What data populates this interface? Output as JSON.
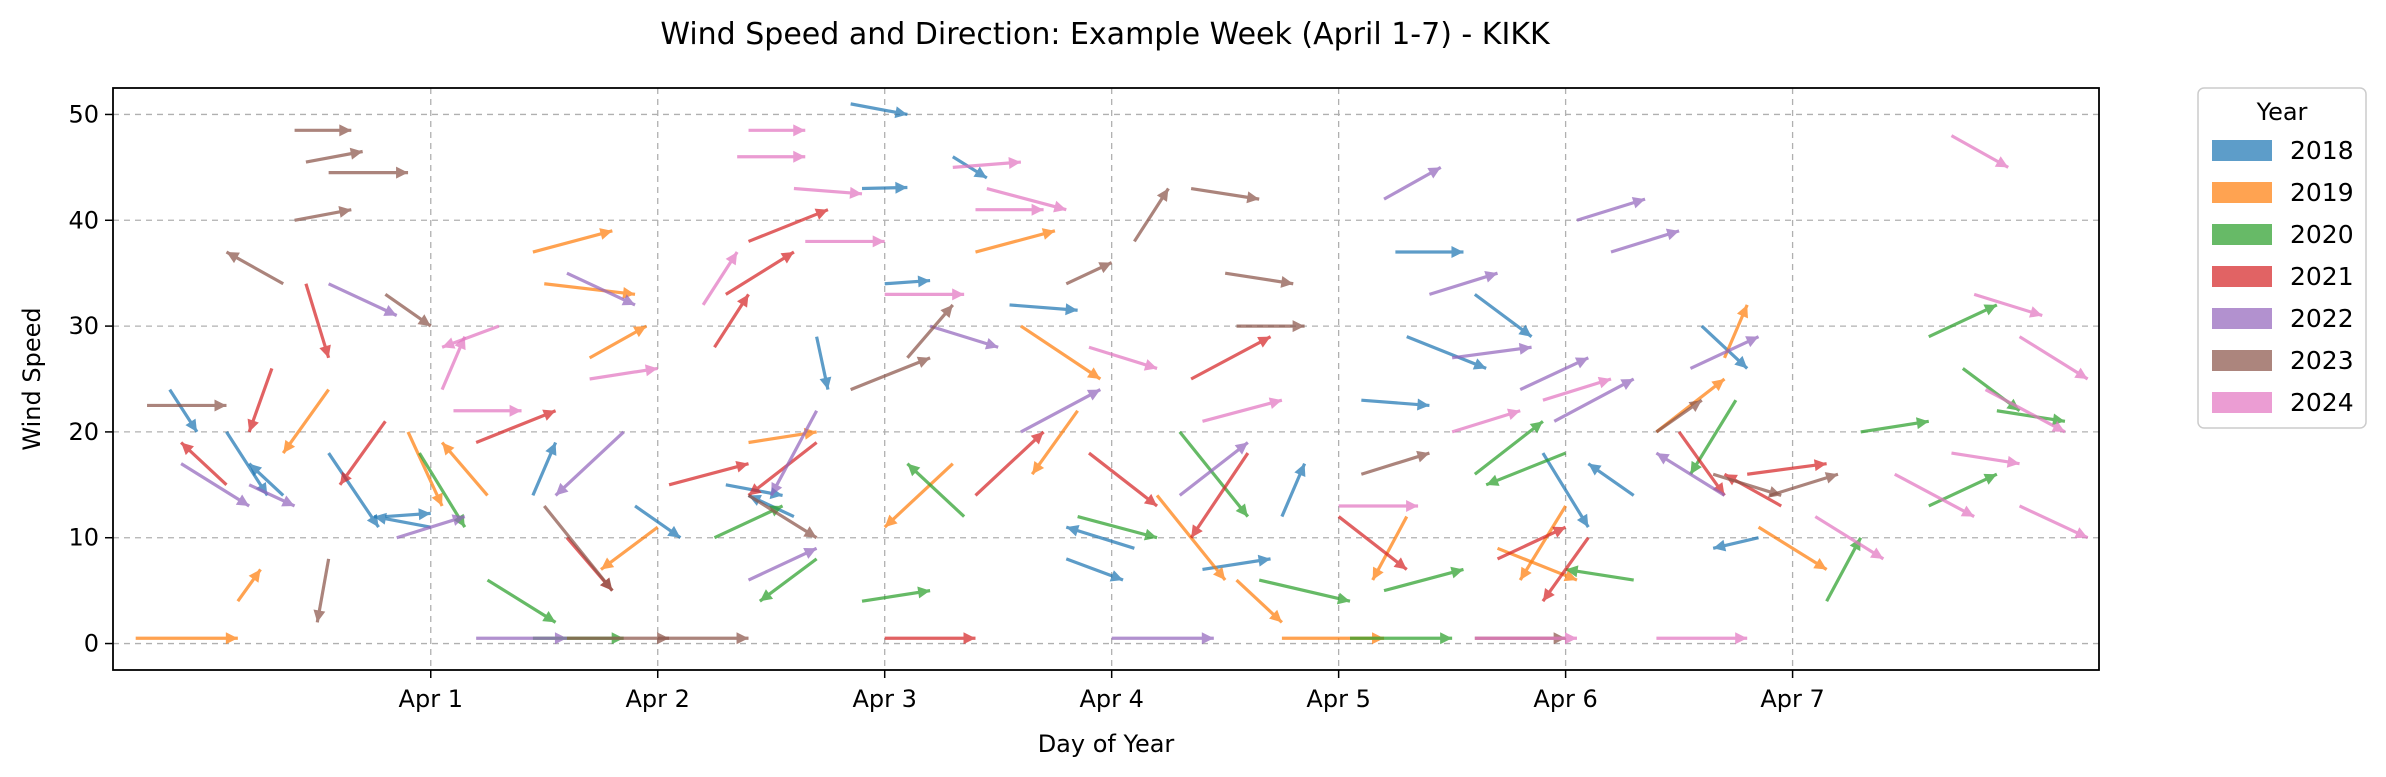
{
  "chart_data": {
    "type": "quiver",
    "title": "Wind Speed and Direction: Example Week (April 1-7) - KIKK",
    "xlabel": "Day of Year",
    "ylabel": "Wind Speed",
    "x_ticks": [
      "Apr 1",
      "Apr 2",
      "Apr 3",
      "Apr 4",
      "Apr 5",
      "Apr 6",
      "Apr 7"
    ],
    "x_tick_values": [
      91,
      92,
      93,
      94,
      95,
      96,
      97
    ],
    "xlim": [
      89.6,
      98.35
    ],
    "y_ticks": [
      0,
      10,
      20,
      30,
      40,
      50
    ],
    "ylim": [
      -2.5,
      52.5
    ],
    "grid": true,
    "legend": {
      "title": "Year",
      "placement": "outside-right-top"
    },
    "series": [
      {
        "name": "2018",
        "color": "#1f77b4"
      },
      {
        "name": "2019",
        "color": "#ff7f0e"
      },
      {
        "name": "2020",
        "color": "#2ca02c"
      },
      {
        "name": "2021",
        "color": "#d62728"
      },
      {
        "name": "2022",
        "color": "#9467bd"
      },
      {
        "name": "2023",
        "color": "#8c564b"
      },
      {
        "name": "2024",
        "color": "#e377c2"
      }
    ],
    "arrows": [
      {
        "s": "2018",
        "x": 89.85,
        "y": 24,
        "u": 0.12,
        "v": -4
      },
      {
        "s": "2018",
        "x": 90.1,
        "y": 20,
        "u": 0.18,
        "v": -6
      },
      {
        "s": "2018",
        "x": 90.35,
        "y": 14,
        "u": -0.15,
        "v": 3
      },
      {
        "s": "2018",
        "x": 90.55,
        "y": 18,
        "u": 0.22,
        "v": -7
      },
      {
        "s": "2018",
        "x": 90.8,
        "y": 12,
        "u": 0.2,
        "v": 0.3
      },
      {
        "s": "2018",
        "x": 91.0,
        "y": 11,
        "u": -0.25,
        "v": 1
      },
      {
        "s": "2018",
        "x": 91.45,
        "y": 14,
        "u": 0.1,
        "v": 5
      },
      {
        "s": "2018",
        "x": 91.9,
        "y": 13,
        "u": 0.2,
        "v": -3
      },
      {
        "s": "2018",
        "x": 92.3,
        "y": 15,
        "u": 0.25,
        "v": -1
      },
      {
        "s": "2018",
        "x": 92.6,
        "y": 12,
        "u": -0.2,
        "v": 2
      },
      {
        "s": "2018",
        "x": 92.7,
        "y": 29,
        "u": 0.05,
        "v": -5
      },
      {
        "s": "2018",
        "x": 92.85,
        "y": 51,
        "u": 0.25,
        "v": -1
      },
      {
        "s": "2018",
        "x": 93.0,
        "y": 34,
        "u": 0.2,
        "v": 0.3
      },
      {
        "s": "2018",
        "x": 92.9,
        "y": 43,
        "u": 0.2,
        "v": 0.1
      },
      {
        "s": "2018",
        "x": 93.3,
        "y": 46,
        "u": 0.15,
        "v": -2
      },
      {
        "s": "2018",
        "x": 93.55,
        "y": 32,
        "u": 0.3,
        "v": -0.5
      },
      {
        "s": "2018",
        "x": 93.8,
        "y": 8,
        "u": 0.25,
        "v": -2
      },
      {
        "s": "2018",
        "x": 94.1,
        "y": 9,
        "u": -0.3,
        "v": 2
      },
      {
        "s": "2018",
        "x": 94.4,
        "y": 7,
        "u": 0.3,
        "v": 1
      },
      {
        "s": "2018",
        "x": 94.75,
        "y": 12,
        "u": 0.1,
        "v": 5
      },
      {
        "s": "2018",
        "x": 95.1,
        "y": 23,
        "u": 0.3,
        "v": -0.5
      },
      {
        "s": "2018",
        "x": 95.3,
        "y": 29,
        "u": 0.35,
        "v": -3
      },
      {
        "s": "2018",
        "x": 95.25,
        "y": 37,
        "u": 0.3,
        "v": 0
      },
      {
        "s": "2018",
        "x": 95.6,
        "y": 33,
        "u": 0.25,
        "v": -4
      },
      {
        "s": "2018",
        "x": 95.9,
        "y": 18,
        "u": 0.2,
        "v": -7
      },
      {
        "s": "2018",
        "x": 96.3,
        "y": 14,
        "u": -0.2,
        "v": 3
      },
      {
        "s": "2018",
        "x": 96.6,
        "y": 30,
        "u": 0.2,
        "v": -4
      },
      {
        "s": "2018",
        "x": 96.85,
        "y": 10,
        "u": -0.2,
        "v": -1
      },
      {
        "s": "2019",
        "x": 89.7,
        "y": 0.5,
        "u": 0.45,
        "v": 0
      },
      {
        "s": "2019",
        "x": 90.15,
        "y": 4,
        "u": 0.1,
        "v": 3
      },
      {
        "s": "2019",
        "x": 90.55,
        "y": 24,
        "u": -0.2,
        "v": -6
      },
      {
        "s": "2019",
        "x": 90.9,
        "y": 20,
        "u": 0.15,
        "v": -7
      },
      {
        "s": "2019",
        "x": 91.25,
        "y": 14,
        "u": -0.2,
        "v": 5
      },
      {
        "s": "2019",
        "x": 91.5,
        "y": 34,
        "u": 0.4,
        "v": -1
      },
      {
        "s": "2019",
        "x": 91.45,
        "y": 37,
        "u": 0.35,
        "v": 2
      },
      {
        "s": "2019",
        "x": 91.7,
        "y": 27,
        "u": 0.25,
        "v": 3
      },
      {
        "s": "2019",
        "x": 92.0,
        "y": 11,
        "u": -0.25,
        "v": -4
      },
      {
        "s": "2019",
        "x": 92.4,
        "y": 19,
        "u": 0.3,
        "v": 1
      },
      {
        "s": "2019",
        "x": 93.3,
        "y": 17,
        "u": -0.3,
        "v": -6
      },
      {
        "s": "2019",
        "x": 93.6,
        "y": 30,
        "u": 0.35,
        "v": -5
      },
      {
        "s": "2019",
        "x": 93.4,
        "y": 37,
        "u": 0.35,
        "v": 2
      },
      {
        "s": "2019",
        "x": 93.85,
        "y": 22,
        "u": -0.2,
        "v": -6
      },
      {
        "s": "2019",
        "x": 94.2,
        "y": 14,
        "u": 0.3,
        "v": -8
      },
      {
        "s": "2019",
        "x": 94.55,
        "y": 6,
        "u": 0.2,
        "v": -4
      },
      {
        "s": "2019",
        "x": 94.75,
        "y": 0.5,
        "u": 0.45,
        "v": 0
      },
      {
        "s": "2019",
        "x": 95.3,
        "y": 12,
        "u": -0.15,
        "v": -6
      },
      {
        "s": "2019",
        "x": 95.7,
        "y": 9,
        "u": 0.35,
        "v": -3
      },
      {
        "s": "2019",
        "x": 96.0,
        "y": 13,
        "u": -0.2,
        "v": -7
      },
      {
        "s": "2019",
        "x": 96.4,
        "y": 20,
        "u": 0.3,
        "v": 5
      },
      {
        "s": "2019",
        "x": 96.7,
        "y": 27,
        "u": 0.1,
        "v": 5
      },
      {
        "s": "2019",
        "x": 96.85,
        "y": 11,
        "u": 0.3,
        "v": -4
      },
      {
        "s": "2020",
        "x": 90.95,
        "y": 18,
        "u": 0.2,
        "v": -7
      },
      {
        "s": "2020",
        "x": 91.25,
        "y": 6,
        "u": 0.3,
        "v": -4
      },
      {
        "s": "2020",
        "x": 91.45,
        "y": 0.5,
        "u": 0.4,
        "v": 0
      },
      {
        "s": "2020",
        "x": 92.25,
        "y": 10,
        "u": 0.3,
        "v": 3
      },
      {
        "s": "2020",
        "x": 92.7,
        "y": 8,
        "u": -0.25,
        "v": -4
      },
      {
        "s": "2020",
        "x": 92.9,
        "y": 4,
        "u": 0.3,
        "v": 1
      },
      {
        "s": "2020",
        "x": 93.35,
        "y": 12,
        "u": -0.25,
        "v": 5
      },
      {
        "s": "2020",
        "x": 93.85,
        "y": 12,
        "u": 0.35,
        "v": -2
      },
      {
        "s": "2020",
        "x": 94.3,
        "y": 20,
        "u": 0.3,
        "v": -8
      },
      {
        "s": "2020",
        "x": 94.65,
        "y": 6,
        "u": 0.4,
        "v": -2
      },
      {
        "s": "2020",
        "x": 95.05,
        "y": 0.5,
        "u": 0.45,
        "v": 0
      },
      {
        "s": "2020",
        "x": 95.2,
        "y": 5,
        "u": 0.35,
        "v": 2
      },
      {
        "s": "2020",
        "x": 95.6,
        "y": 16,
        "u": 0.3,
        "v": 5
      },
      {
        "s": "2020",
        "x": 96.0,
        "y": 18,
        "u": -0.35,
        "v": -3
      },
      {
        "s": "2020",
        "x": 96.3,
        "y": 6,
        "u": -0.3,
        "v": 1
      },
      {
        "s": "2020",
        "x": 96.75,
        "y": 23,
        "u": -0.2,
        "v": -7
      },
      {
        "s": "2020",
        "x": 97.15,
        "y": 4,
        "u": 0.15,
        "v": 6
      },
      {
        "s": "2020",
        "x": 97.3,
        "y": 20,
        "u": 0.3,
        "v": 1
      },
      {
        "s": "2020",
        "x": 97.6,
        "y": 29,
        "u": 0.3,
        "v": 3
      },
      {
        "s": "2020",
        "x": 97.75,
        "y": 26,
        "u": 0.25,
        "v": -4
      },
      {
        "s": "2020",
        "x": 97.9,
        "y": 22,
        "u": 0.3,
        "v": -1
      },
      {
        "s": "2020",
        "x": 97.6,
        "y": 13,
        "u": 0.3,
        "v": 3
      },
      {
        "s": "2021",
        "x": 90.1,
        "y": 15,
        "u": -0.2,
        "v": 4
      },
      {
        "s": "2021",
        "x": 90.3,
        "y": 26,
        "u": -0.1,
        "v": -6
      },
      {
        "s": "2021",
        "x": 90.45,
        "y": 34,
        "u": 0.1,
        "v": -7
      },
      {
        "s": "2021",
        "x": 90.8,
        "y": 21,
        "u": -0.2,
        "v": -6
      },
      {
        "s": "2021",
        "x": 91.2,
        "y": 19,
        "u": 0.35,
        "v": 3
      },
      {
        "s": "2021",
        "x": 91.6,
        "y": 10,
        "u": 0.2,
        "v": -5
      },
      {
        "s": "2021",
        "x": 92.05,
        "y": 15,
        "u": 0.35,
        "v": 2
      },
      {
        "s": "2021",
        "x": 92.3,
        "y": 33,
        "u": 0.3,
        "v": 4
      },
      {
        "s": "2021",
        "x": 92.4,
        "y": 38,
        "u": 0.35,
        "v": 3
      },
      {
        "s": "2021",
        "x": 92.25,
        "y": 28,
        "u": 0.15,
        "v": 5
      },
      {
        "s": "2021",
        "x": 92.7,
        "y": 19,
        "u": -0.3,
        "v": -5
      },
      {
        "s": "2021",
        "x": 93.0,
        "y": 0.5,
        "u": 0.4,
        "v": 0
      },
      {
        "s": "2021",
        "x": 93.4,
        "y": 14,
        "u": 0.3,
        "v": 6
      },
      {
        "s": "2021",
        "x": 93.9,
        "y": 18,
        "u": 0.3,
        "v": -5
      },
      {
        "s": "2021",
        "x": 94.35,
        "y": 25,
        "u": 0.35,
        "v": 4
      },
      {
        "s": "2021",
        "x": 94.6,
        "y": 18,
        "u": -0.25,
        "v": -8
      },
      {
        "s": "2021",
        "x": 95.0,
        "y": 12,
        "u": 0.3,
        "v": -5
      },
      {
        "s": "2021",
        "x": 95.7,
        "y": 8,
        "u": 0.3,
        "v": 3
      },
      {
        "s": "2021",
        "x": 96.1,
        "y": 10,
        "u": -0.2,
        "v": -6
      },
      {
        "s": "2021",
        "x": 96.5,
        "y": 20,
        "u": 0.2,
        "v": -6
      },
      {
        "s": "2021",
        "x": 96.8,
        "y": 16,
        "u": 0.35,
        "v": 1
      },
      {
        "s": "2021",
        "x": 96.95,
        "y": 13,
        "u": -0.25,
        "v": 3
      },
      {
        "s": "2022",
        "x": 89.9,
        "y": 17,
        "u": 0.3,
        "v": -4
      },
      {
        "s": "2022",
        "x": 90.2,
        "y": 15,
        "u": 0.2,
        "v": -2
      },
      {
        "s": "2022",
        "x": 90.55,
        "y": 34,
        "u": 0.3,
        "v": -3
      },
      {
        "s": "2022",
        "x": 90.85,
        "y": 10,
        "u": 0.3,
        "v": 2
      },
      {
        "s": "2022",
        "x": 91.2,
        "y": 0.5,
        "u": 0.4,
        "v": 0
      },
      {
        "s": "2022",
        "x": 91.6,
        "y": 35,
        "u": 0.3,
        "v": -3
      },
      {
        "s": "2022",
        "x": 91.85,
        "y": 20,
        "u": -0.3,
        "v": -6
      },
      {
        "s": "2022",
        "x": 92.4,
        "y": 6,
        "u": 0.3,
        "v": 3
      },
      {
        "s": "2022",
        "x": 92.7,
        "y": 22,
        "u": -0.2,
        "v": -8
      },
      {
        "s": "2022",
        "x": 93.2,
        "y": 30,
        "u": 0.3,
        "v": -2
      },
      {
        "s": "2022",
        "x": 93.6,
        "y": 20,
        "u": 0.35,
        "v": 4
      },
      {
        "s": "2022",
        "x": 94.0,
        "y": 0.5,
        "u": 0.45,
        "v": 0
      },
      {
        "s": "2022",
        "x": 94.3,
        "y": 14,
        "u": 0.3,
        "v": 5
      },
      {
        "s": "2022",
        "x": 95.2,
        "y": 42,
        "u": 0.25,
        "v": 3
      },
      {
        "s": "2022",
        "x": 95.4,
        "y": 33,
        "u": 0.3,
        "v": 2
      },
      {
        "s": "2022",
        "x": 95.5,
        "y": 27,
        "u": 0.35,
        "v": 1
      },
      {
        "s": "2022",
        "x": 95.8,
        "y": 24,
        "u": 0.3,
        "v": 3
      },
      {
        "s": "2022",
        "x": 96.05,
        "y": 40,
        "u": 0.3,
        "v": 2
      },
      {
        "s": "2022",
        "x": 96.2,
        "y": 37,
        "u": 0.3,
        "v": 2
      },
      {
        "s": "2022",
        "x": 95.95,
        "y": 21,
        "u": 0.35,
        "v": 4
      },
      {
        "s": "2022",
        "x": 96.55,
        "y": 26,
        "u": 0.3,
        "v": 3
      },
      {
        "s": "2022",
        "x": 96.7,
        "y": 14,
        "u": -0.3,
        "v": 4
      },
      {
        "s": "2023",
        "x": 89.75,
        "y": 22.5,
        "u": 0.35,
        "v": 0
      },
      {
        "s": "2023",
        "x": 90.4,
        "y": 48.5,
        "u": 0.25,
        "v": 0
      },
      {
        "s": "2023",
        "x": 90.45,
        "y": 45.5,
        "u": 0.25,
        "v": 1
      },
      {
        "s": "2023",
        "x": 90.55,
        "y": 44.5,
        "u": 0.35,
        "v": 0
      },
      {
        "s": "2023",
        "x": 90.4,
        "y": 40,
        "u": 0.25,
        "v": 1
      },
      {
        "s": "2023",
        "x": 90.35,
        "y": 34,
        "u": -0.25,
        "v": 3
      },
      {
        "s": "2023",
        "x": 90.8,
        "y": 33,
        "u": 0.2,
        "v": -3
      },
      {
        "s": "2023",
        "x": 90.55,
        "y": 8,
        "u": -0.05,
        "v": -6
      },
      {
        "s": "2023",
        "x": 91.5,
        "y": 13,
        "u": 0.3,
        "v": -8
      },
      {
        "s": "2023",
        "x": 91.6,
        "y": 0.5,
        "u": 0.45,
        "v": 0
      },
      {
        "s": "2023",
        "x": 92.0,
        "y": 0.5,
        "u": 0.4,
        "v": 0
      },
      {
        "s": "2023",
        "x": 92.4,
        "y": 14,
        "u": 0.3,
        "v": -4
      },
      {
        "s": "2023",
        "x": 92.85,
        "y": 24,
        "u": 0.35,
        "v": 3
      },
      {
        "s": "2023",
        "x": 93.1,
        "y": 27,
        "u": 0.2,
        "v": 5
      },
      {
        "s": "2023",
        "x": 93.8,
        "y": 34,
        "u": 0.2,
        "v": 2
      },
      {
        "s": "2023",
        "x": 94.1,
        "y": 38,
        "u": 0.15,
        "v": 5
      },
      {
        "s": "2023",
        "x": 94.35,
        "y": 43,
        "u": 0.3,
        "v": -1
      },
      {
        "s": "2023",
        "x": 94.5,
        "y": 35,
        "u": 0.3,
        "v": -1
      },
      {
        "s": "2023",
        "x": 94.55,
        "y": 30,
        "u": 0.3,
        "v": 0
      },
      {
        "s": "2023",
        "x": 95.1,
        "y": 16,
        "u": 0.3,
        "v": 2
      },
      {
        "s": "2023",
        "x": 95.6,
        "y": 0.5,
        "u": 0.4,
        "v": 0
      },
      {
        "s": "2023",
        "x": 96.4,
        "y": 20,
        "u": 0.2,
        "v": 3
      },
      {
        "s": "2023",
        "x": 96.65,
        "y": 16,
        "u": 0.3,
        "v": -2
      },
      {
        "s": "2023",
        "x": 96.9,
        "y": 14,
        "u": 0.3,
        "v": 2
      },
      {
        "s": "2024",
        "x": 91.05,
        "y": 24,
        "u": 0.1,
        "v": 5
      },
      {
        "s": "2024",
        "x": 91.3,
        "y": 30,
        "u": -0.25,
        "v": -2
      },
      {
        "s": "2024",
        "x": 91.1,
        "y": 22,
        "u": 0.3,
        "v": 0
      },
      {
        "s": "2024",
        "x": 91.7,
        "y": 25,
        "u": 0.3,
        "v": 1
      },
      {
        "s": "2024",
        "x": 92.2,
        "y": 32,
        "u": 0.15,
        "v": 5
      },
      {
        "s": "2024",
        "x": 92.4,
        "y": 48.5,
        "u": 0.25,
        "v": 0
      },
      {
        "s": "2024",
        "x": 92.35,
        "y": 46,
        "u": 0.3,
        "v": 0
      },
      {
        "s": "2024",
        "x": 92.6,
        "y": 43,
        "u": 0.3,
        "v": -0.5
      },
      {
        "s": "2024",
        "x": 92.65,
        "y": 38,
        "u": 0.35,
        "v": 0
      },
      {
        "s": "2024",
        "x": 93.0,
        "y": 33,
        "u": 0.35,
        "v": 0
      },
      {
        "s": "2024",
        "x": 93.3,
        "y": 45,
        "u": 0.3,
        "v": 0.5
      },
      {
        "s": "2024",
        "x": 93.4,
        "y": 41,
        "u": 0.3,
        "v": 0
      },
      {
        "s": "2024",
        "x": 93.45,
        "y": 43,
        "u": 0.35,
        "v": -2
      },
      {
        "s": "2024",
        "x": 93.9,
        "y": 28,
        "u": 0.3,
        "v": -2
      },
      {
        "s": "2024",
        "x": 94.4,
        "y": 21,
        "u": 0.35,
        "v": 2
      },
      {
        "s": "2024",
        "x": 95.0,
        "y": 13,
        "u": 0.35,
        "v": 0
      },
      {
        "s": "2024",
        "x": 95.5,
        "y": 20,
        "u": 0.3,
        "v": 2
      },
      {
        "s": "2024",
        "x": 95.6,
        "y": 0.5,
        "u": 0.45,
        "v": 0
      },
      {
        "s": "2024",
        "x": 95.9,
        "y": 23,
        "u": 0.3,
        "v": 2
      },
      {
        "s": "2024",
        "x": 96.4,
        "y": 0.5,
        "u": 0.4,
        "v": 0
      },
      {
        "s": "2024",
        "x": 97.45,
        "y": 16,
        "u": 0.35,
        "v": -4
      },
      {
        "s": "2024",
        "x": 97.1,
        "y": 12,
        "u": 0.3,
        "v": -4
      },
      {
        "s": "2024",
        "x": 97.7,
        "y": 48,
        "u": 0.25,
        "v": -3
      },
      {
        "s": "2024",
        "x": 97.8,
        "y": 33,
        "u": 0.3,
        "v": -2
      },
      {
        "s": "2024",
        "x": 98.0,
        "y": 29,
        "u": 0.3,
        "v": -4
      },
      {
        "s": "2024",
        "x": 97.85,
        "y": 24,
        "u": 0.35,
        "v": -4
      },
      {
        "s": "2024",
        "x": 98.0,
        "y": 13,
        "u": 0.3,
        "v": -3
      },
      {
        "s": "2024",
        "x": 97.7,
        "y": 18,
        "u": 0.3,
        "v": -1
      }
    ]
  }
}
